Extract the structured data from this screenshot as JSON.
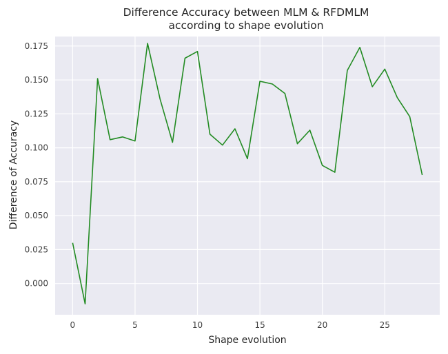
{
  "chart_data": {
    "type": "line",
    "title": [
      "Difference Accuracy between MLM & RFDMLM",
      "according to shape evolution"
    ],
    "xlabel": "Shape evolution",
    "ylabel": "Difference of Accuracy",
    "xlim": [
      -1.4,
      29.4
    ],
    "ylim": [
      -0.023,
      0.182
    ],
    "x_ticks": [
      0,
      5,
      10,
      15,
      20,
      25
    ],
    "y_ticks": [
      0.0,
      0.025,
      0.05,
      0.075,
      0.1,
      0.125,
      0.15,
      0.175
    ],
    "x_tick_labels": [
      "0",
      "5",
      "10",
      "15",
      "20",
      "25"
    ],
    "y_tick_labels": [
      "0.000",
      "0.025",
      "0.050",
      "0.075",
      "0.100",
      "0.125",
      "0.150",
      "0.175"
    ],
    "grid": true,
    "series": [
      {
        "color": "#228b22",
        "x": [
          0,
          1,
          2,
          3,
          4,
          5,
          6,
          7,
          8,
          9,
          10,
          11,
          12,
          13,
          14,
          15,
          16,
          17,
          18,
          19,
          20,
          21,
          22,
          23,
          24,
          25,
          26,
          27,
          28
        ],
        "y": [
          0.03,
          -0.015,
          0.151,
          0.106,
          0.108,
          0.105,
          0.177,
          0.136,
          0.104,
          0.166,
          0.171,
          0.11,
          0.102,
          0.114,
          0.092,
          0.149,
          0.147,
          0.14,
          0.103,
          0.113,
          0.087,
          0.082,
          0.157,
          0.174,
          0.145,
          0.158,
          0.137,
          0.123,
          0.08
        ]
      }
    ]
  }
}
